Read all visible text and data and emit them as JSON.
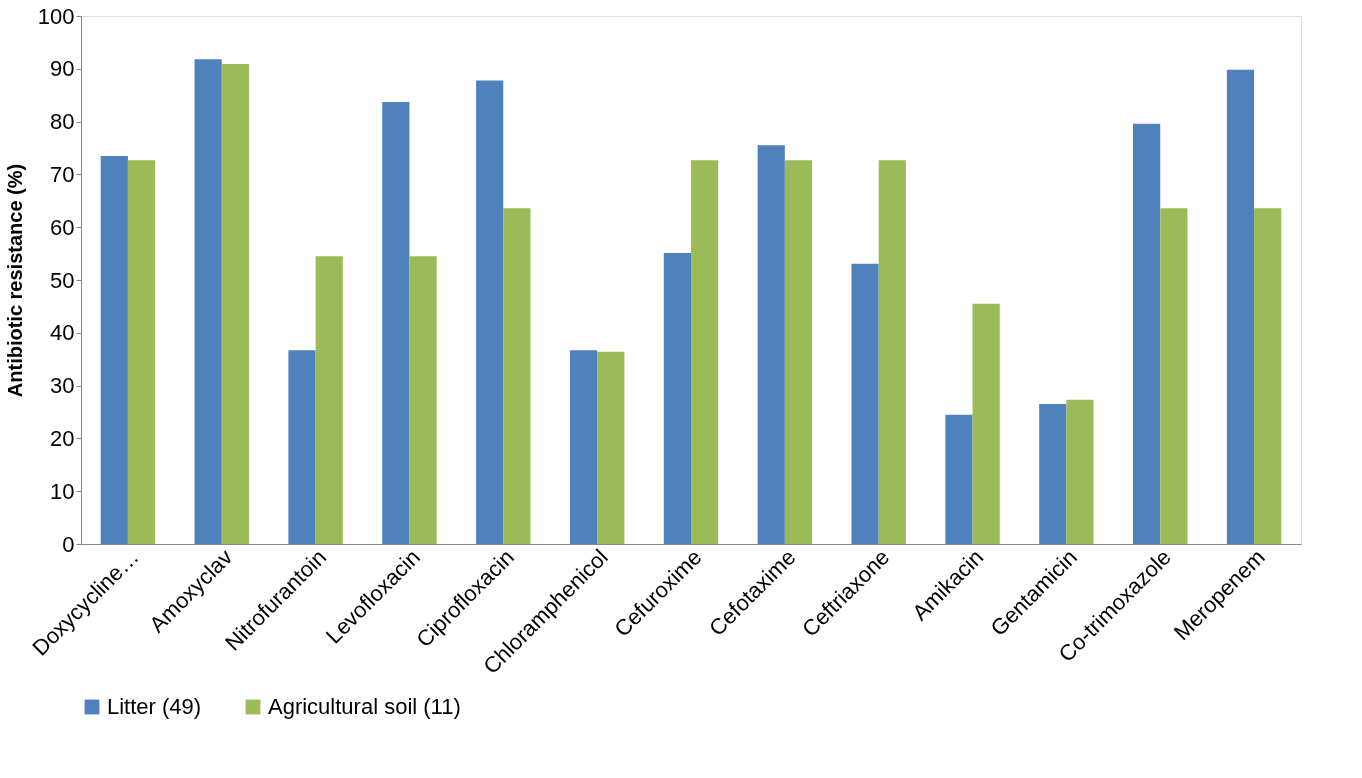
{
  "chart_data": {
    "type": "bar",
    "ylabel": "Antibiotic resistance (%)",
    "categories": [
      "Doxycycline…",
      "Amoxyclav",
      "Nitrofurantoin",
      "Levofloxacin",
      "Ciprofloxacin",
      "Chloramphenicol",
      "Cefuroxime",
      "Cefotaxime",
      "Ceftriaxone",
      "Amikacin",
      "Gentamicin",
      "Co-trimoxazole",
      "Meropenem"
    ],
    "series": [
      {
        "name": "Litter (49)",
        "color": "#4f81bd",
        "values": [
          73.5,
          91.8,
          36.7,
          83.7,
          87.8,
          36.7,
          55.1,
          75.5,
          53.1,
          24.5,
          26.5,
          79.6,
          89.8
        ]
      },
      {
        "name": "Agricultural  soil (11)",
        "color": "#9bbb59",
        "values": [
          72.7,
          90.9,
          54.5,
          54.5,
          63.6,
          36.4,
          72.7,
          72.7,
          72.7,
          45.5,
          27.3,
          63.6,
          63.6
        ]
      }
    ],
    "ylim": [
      0,
      100
    ],
    "yticks": [
      0,
      10,
      20,
      30,
      40,
      50,
      60,
      70,
      80,
      90,
      100
    ],
    "grid": false,
    "legend": "bottom"
  }
}
